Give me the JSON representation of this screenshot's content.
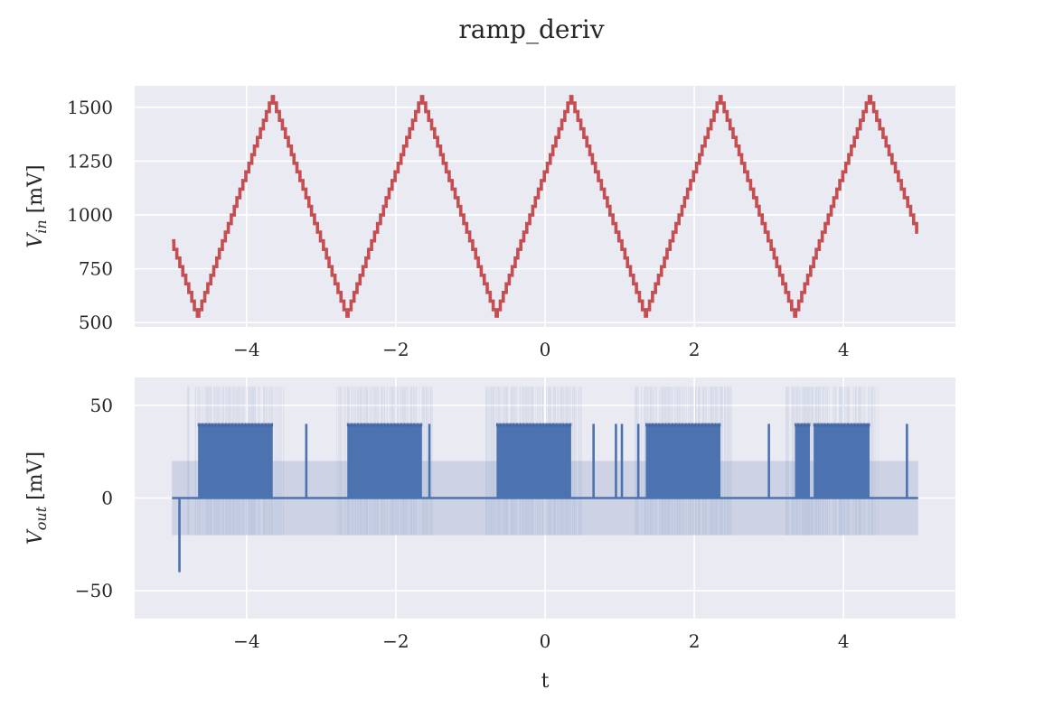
{
  "title": "ramp_deriv",
  "colors": {
    "background": "#eaeaf2",
    "grid": "#ffffff",
    "vin_line": "#c44e52",
    "vout_line": "#4c72b0",
    "vout_band": "#c3cbe0"
  },
  "chart_data": [
    {
      "type": "line",
      "title": "",
      "xlabel": "",
      "ylabel_main": "V",
      "ylabel_sub": "in",
      "ylabel_unit": " [mV]",
      "xlim": [
        -5.5,
        5.5
      ],
      "ylim": [
        480,
        1600
      ],
      "x_ticks": [
        -4,
        -2,
        0,
        2,
        4
      ],
      "x_tick_labels": [
        "−4",
        "−2",
        "0",
        "2",
        "4"
      ],
      "y_ticks": [
        500,
        750,
        1000,
        1250,
        1500
      ],
      "y_tick_labels": [
        "500",
        "750",
        "1000",
        "1250",
        "1500"
      ],
      "grid": true,
      "series": [
        {
          "waveform": "triangle",
          "x_range": [
            -5,
            5
          ],
          "period": 2,
          "min": 530,
          "max": 1550,
          "peak_at": [
            -3.65,
            -1.65,
            0.35,
            2.35,
            4.35
          ],
          "trough_at": [
            -4.65,
            -2.65,
            -0.65,
            1.35,
            3.35
          ],
          "start_value": 880,
          "end_value": 920,
          "quantization_step": 40,
          "values": [
            [
              -5,
              880
            ],
            [
              -4.65,
              530
            ],
            [
              -3.65,
              1550
            ],
            [
              -2.65,
              530
            ],
            [
              -1.65,
              1550
            ],
            [
              -0.65,
              530
            ],
            [
              0.35,
              1550
            ],
            [
              1.35,
              530
            ],
            [
              2.35,
              1550
            ],
            [
              3.35,
              530
            ],
            [
              4.35,
              1550
            ],
            [
              5,
              920
            ]
          ]
        }
      ]
    },
    {
      "type": "line",
      "title": "",
      "xlabel": "t",
      "ylabel_main": "V",
      "ylabel_sub": "out",
      "ylabel_unit": " [mV]",
      "xlim": [
        -5.5,
        5.5
      ],
      "ylim": [
        -65,
        65
      ],
      "x_ticks": [
        -4,
        -2,
        0,
        2,
        4
      ],
      "x_tick_labels": [
        "−4",
        "−2",
        "0",
        "2",
        "4"
      ],
      "y_ticks": [
        -50,
        0,
        50
      ],
      "y_tick_labels": [
        "−50",
        "0",
        "50"
      ],
      "grid": true,
      "series": [
        {
          "name_role": "signal",
          "baseline": 0,
          "pulse_high": 40,
          "dense_pulse_regions": [
            [
              -4.65,
              -3.65
            ],
            [
              -2.65,
              -1.65
            ],
            [
              -0.65,
              0.35
            ],
            [
              1.35,
              2.35
            ],
            [
              3.35,
              3.55
            ],
            [
              3.6,
              4.35
            ]
          ],
          "isolated_pulses": [
            -3.2,
            -1.55,
            0.65,
            0.95,
            1.03,
            1.25,
            3.0,
            4.85
          ],
          "negative_spike": {
            "x": -4.9,
            "y": -40
          },
          "x_range": [
            -5,
            5
          ]
        },
        {
          "name_role": "band",
          "x_range": [
            -5,
            5
          ],
          "y_range": [
            -20,
            20
          ]
        }
      ]
    }
  ]
}
